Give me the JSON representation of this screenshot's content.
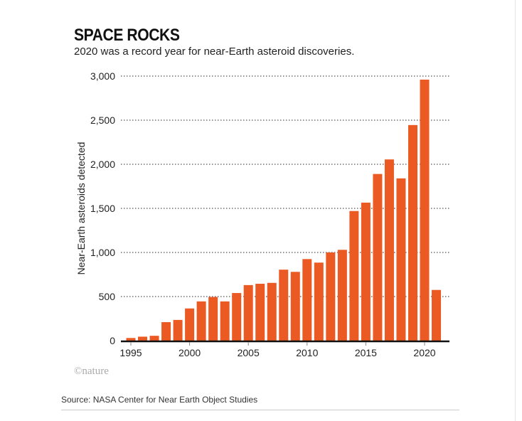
{
  "chart_data": {
    "type": "bar",
    "title": "SPACE ROCKS",
    "subtitle": "2020 was a record year for near-Earth asteroid discoveries.",
    "xlabel": "",
    "ylabel": "Near-Earth asteroids detected",
    "ylim": [
      0,
      3000
    ],
    "yticks": [
      0,
      500,
      1000,
      1500,
      2000,
      2500,
      3000
    ],
    "ytick_labels": [
      "0",
      "500",
      "1,000",
      "1,500",
      "2,000",
      "2,500",
      "3,000"
    ],
    "xtick_labels": [
      "1995",
      "2000",
      "2005",
      "2010",
      "2015",
      "2020"
    ],
    "grid": "horizontal dotted",
    "bar_color": "#ec5a24",
    "categories": [
      1995,
      1996,
      1997,
      1998,
      1999,
      2000,
      2001,
      2002,
      2003,
      2004,
      2005,
      2006,
      2007,
      2008,
      2009,
      2010,
      2011,
      2012,
      2013,
      2014,
      2015,
      2016,
      2017,
      2018,
      2019,
      2020,
      2021
    ],
    "values": [
      30,
      45,
      55,
      210,
      235,
      365,
      445,
      495,
      445,
      540,
      630,
      645,
      655,
      805,
      780,
      925,
      885,
      1000,
      1030,
      1470,
      1565,
      1890,
      2055,
      1840,
      2445,
      2960,
      575
    ]
  },
  "logo": "©nature",
  "source": "Source: NASA Center for Near Earth Object Studies"
}
